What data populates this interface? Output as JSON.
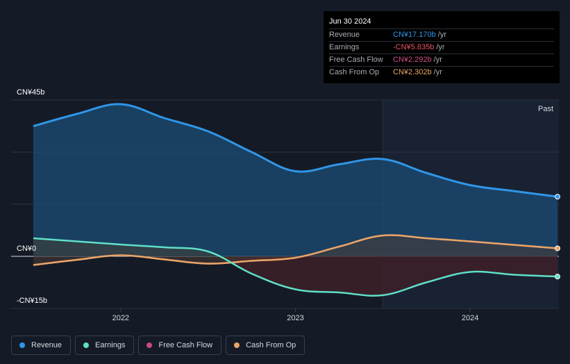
{
  "tooltip": {
    "date": "Jun 30 2024",
    "rows": [
      {
        "label": "Revenue",
        "value": "CN¥17.170b",
        "unit": "/yr",
        "color": "#2f96e8"
      },
      {
        "label": "Earnings",
        "value": "-CN¥5.835b",
        "unit": "/yr",
        "color": "#e8545e"
      },
      {
        "label": "Free Cash Flow",
        "value": "CN¥2.292b",
        "unit": "/yr",
        "color": "#d24e8c"
      },
      {
        "label": "Cash From Op",
        "value": "CN¥2.302b",
        "unit": "/yr",
        "color": "#e8a665"
      }
    ]
  },
  "past_label": "Past",
  "legend": [
    {
      "label": "Revenue",
      "color": "#2f96e8"
    },
    {
      "label": "Earnings",
      "color": "#5fe0c8"
    },
    {
      "label": "Free Cash Flow",
      "color": "#c8488a"
    },
    {
      "label": "Cash From Op",
      "color": "#e8a665"
    }
  ],
  "chart_data": {
    "type": "area",
    "y_tick_labels": [
      "CN¥45b",
      "CN¥0",
      "-CN¥15b"
    ],
    "x_tick_labels": [
      "2022",
      "2023",
      "2024"
    ],
    "ylim": [
      -15,
      45
    ],
    "xlim": [
      2021.5,
      2024.5
    ],
    "grid": true,
    "series": [
      {
        "name": "Revenue",
        "color": "#2f96e8",
        "x": [
          2021.5,
          2021.75,
          2022.0,
          2022.25,
          2022.5,
          2022.75,
          2023.0,
          2023.25,
          2023.5,
          2023.75,
          2024.0,
          2024.25,
          2024.5
        ],
        "values": [
          37.5,
          41.0,
          43.8,
          39.8,
          36.0,
          30.0,
          24.5,
          26.5,
          28.0,
          24.0,
          20.5,
          18.8,
          17.17
        ]
      },
      {
        "name": "Earnings",
        "color": "#5fe0c8",
        "x": [
          2021.5,
          2021.75,
          2022.0,
          2022.25,
          2022.5,
          2022.75,
          2023.0,
          2023.25,
          2023.5,
          2023.75,
          2024.0,
          2024.25,
          2024.5
        ],
        "values": [
          5.2,
          4.3,
          3.4,
          2.6,
          1.4,
          -5.0,
          -9.5,
          -10.4,
          -11.2,
          -7.5,
          -4.5,
          -5.3,
          -5.835
        ]
      },
      {
        "name": "Free Cash Flow",
        "color": "#c8488a",
        "x": [
          2021.5,
          2021.75,
          2022.0,
          2022.25,
          2022.5,
          2022.75,
          2023.0,
          2023.25,
          2023.5,
          2023.75,
          2024.0,
          2024.25,
          2024.5
        ],
        "values": [
          -2.5,
          -1.0,
          0.3,
          -0.9,
          -2.1,
          -1.3,
          -0.4,
          2.8,
          6.0,
          5.2,
          4.3,
          3.3,
          2.292
        ]
      },
      {
        "name": "Cash From Op",
        "color": "#e8a665",
        "x": [
          2021.5,
          2021.75,
          2022.0,
          2022.25,
          2022.5,
          2022.75,
          2023.0,
          2023.25,
          2023.5,
          2023.75,
          2024.0,
          2024.25,
          2024.5
        ],
        "values": [
          -2.5,
          -1.0,
          0.3,
          -0.9,
          -2.1,
          -1.3,
          -0.4,
          2.8,
          6.0,
          5.2,
          4.3,
          3.3,
          2.302
        ]
      }
    ],
    "past_region_start": 2023.5
  }
}
